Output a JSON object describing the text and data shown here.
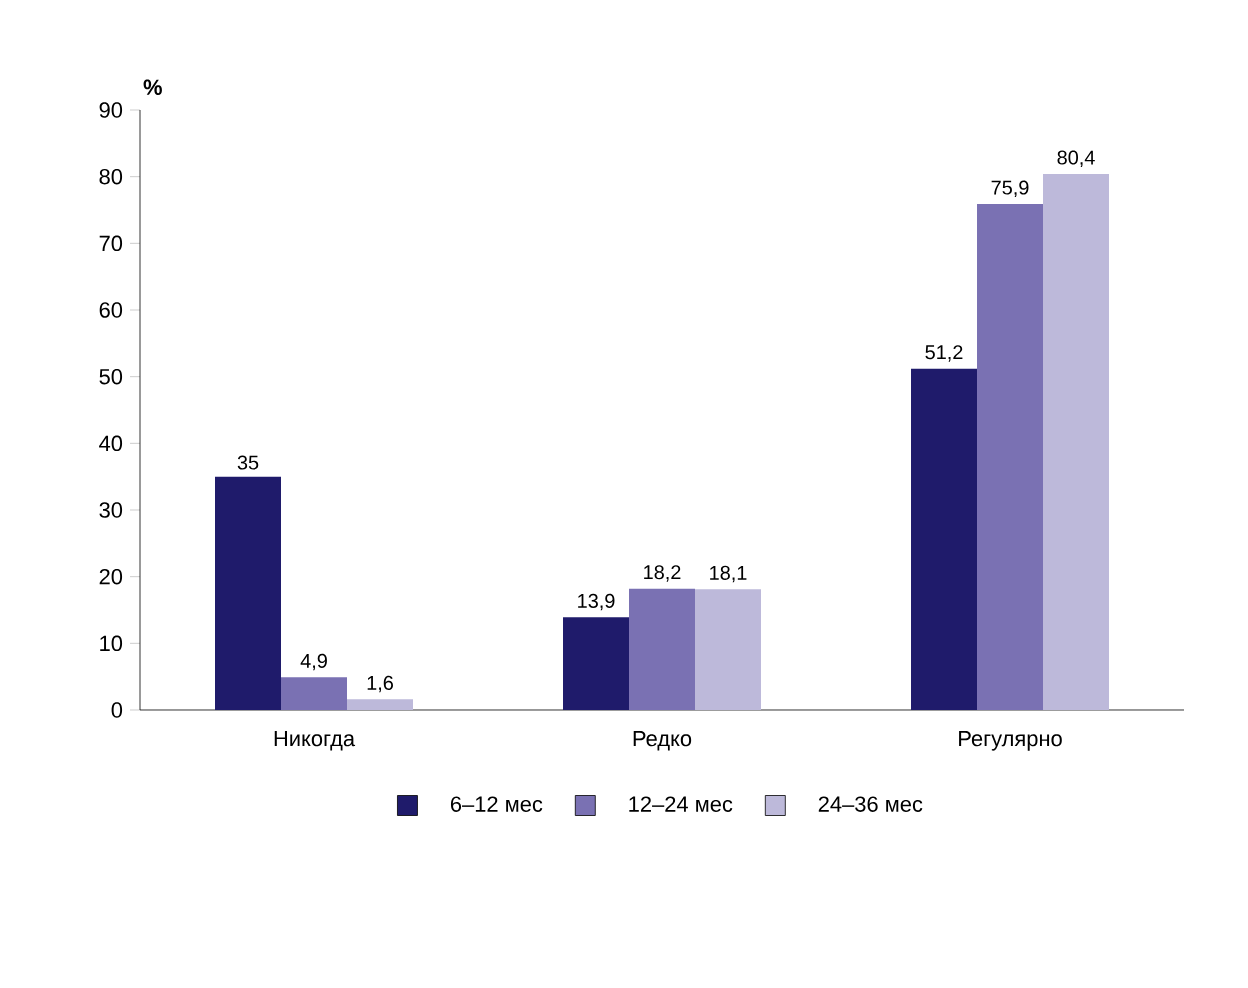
{
  "chart_data": {
    "type": "bar",
    "ylabel": "%",
    "categories": [
      "Никогда",
      "Редко",
      "Регулярно"
    ],
    "series": [
      {
        "name": "6–12 мес",
        "color": "#1f1b6b",
        "values": [
          35,
          13.9,
          51.2
        ],
        "value_labels": [
          "35",
          "13,9",
          "51,2"
        ]
      },
      {
        "name": "12–24 мес",
        "color": "#7a71b3",
        "values": [
          4.9,
          18.2,
          75.9
        ],
        "value_labels": [
          "4,9",
          "18,2",
          "75,9"
        ]
      },
      {
        "name": "24–36 мес",
        "color": "#bdb9da",
        "values": [
          1.6,
          18.1,
          80.4
        ],
        "value_labels": [
          "1,6",
          "18,1",
          "80,4"
        ]
      }
    ],
    "ylim": [
      0,
      90
    ],
    "yticks": [
      0,
      10,
      20,
      30,
      40,
      50,
      60,
      70,
      80,
      90
    ],
    "grid": false,
    "legend": "bottom"
  }
}
